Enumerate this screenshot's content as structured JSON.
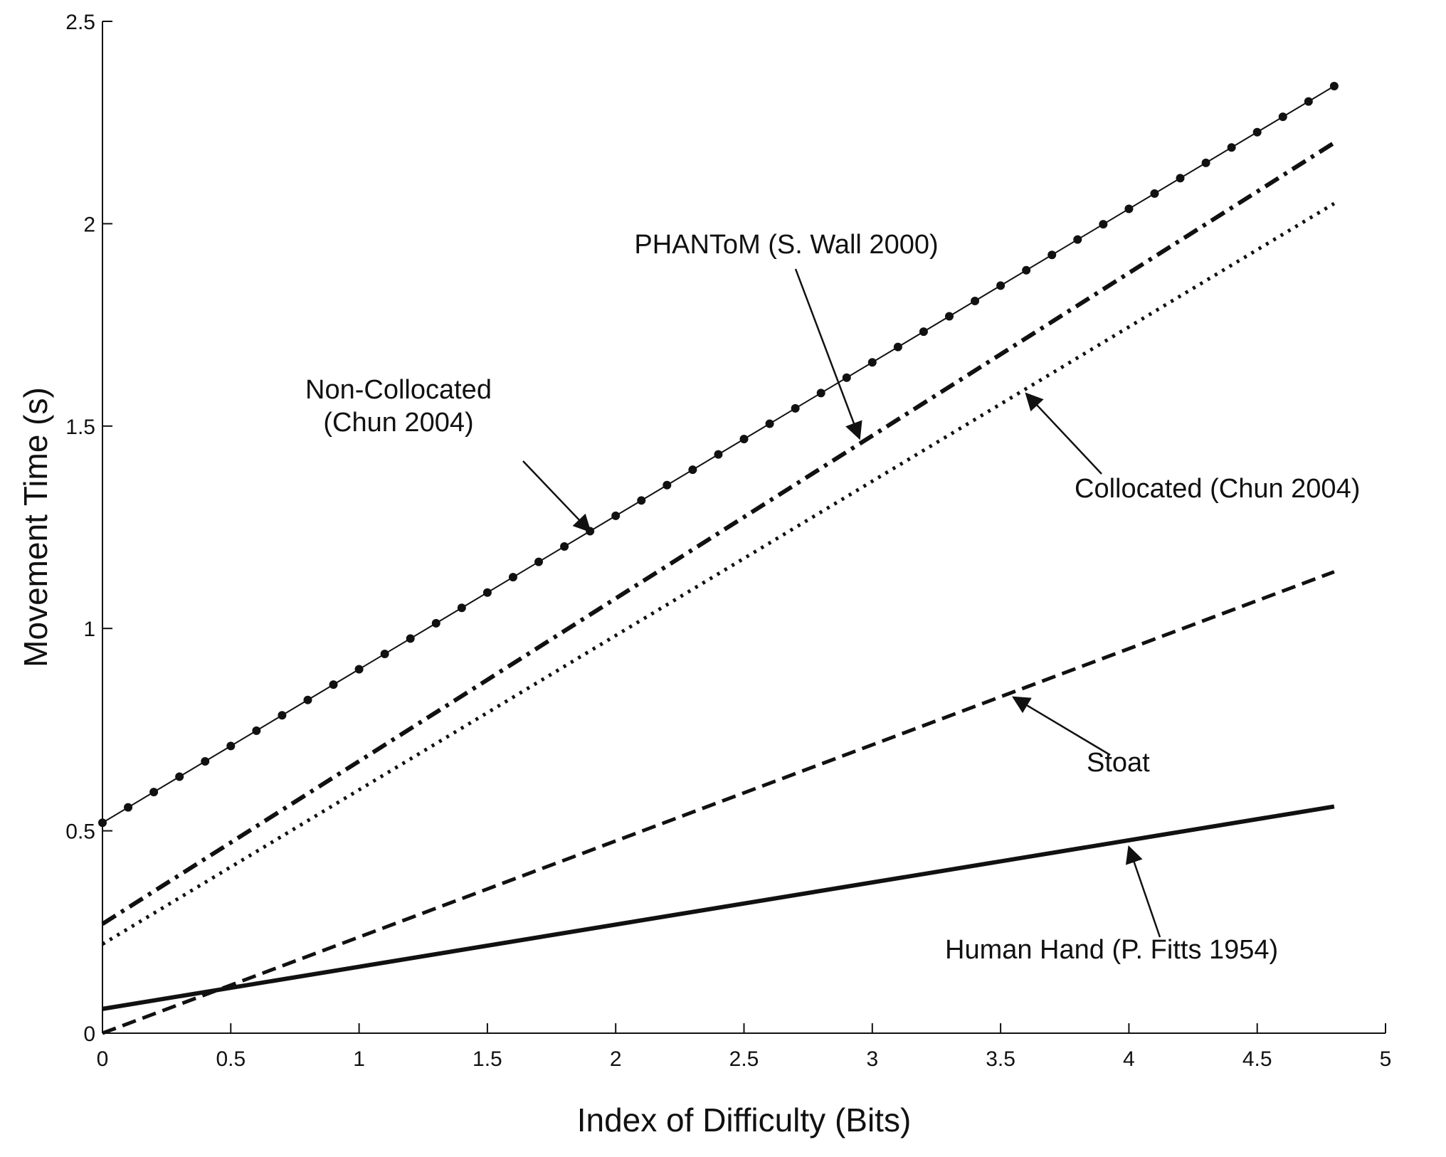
{
  "chart_data": {
    "type": "line",
    "title": "",
    "xlabel": "Index of Difficulty (Bits)",
    "ylabel": "Movement Time (s)",
    "xlim": [
      0,
      5
    ],
    "ylim": [
      0,
      2.5
    ],
    "xticks": [
      0,
      0.5,
      1,
      1.5,
      2,
      2.5,
      3,
      3.5,
      4,
      4.5,
      5
    ],
    "xtick_labels": [
      "0",
      "0.5",
      "1",
      "1.5",
      "2",
      "2.5",
      "3",
      "3.5",
      "4",
      "4.5",
      "5"
    ],
    "yticks": [
      0,
      0.5,
      1,
      1.5,
      2,
      2.5
    ],
    "ytick_labels": [
      "0",
      "0.5",
      "1",
      "1.5",
      "2",
      "2.5"
    ],
    "grid": false,
    "legend": "none (inline annotations with arrows)",
    "series": [
      {
        "name": "Non-Collocated (Chun 2004)",
        "style": "thin-line-with-dots",
        "x": [
          0,
          4.8
        ],
        "y": [
          0.52,
          2.34
        ],
        "marker_step": 0.1
      },
      {
        "name": "PHANToM (S. Wall 2000)",
        "style": "dash-dot",
        "x": [
          0,
          4.8
        ],
        "y": [
          0.27,
          2.2
        ]
      },
      {
        "name": "Collocated (Chun 2004)",
        "style": "dotted",
        "x": [
          0,
          4.8
        ],
        "y": [
          0.22,
          2.05
        ]
      },
      {
        "name": "Stoat",
        "style": "dashed",
        "x": [
          0,
          4.8
        ],
        "y": [
          0.0,
          1.14
        ]
      },
      {
        "name": "Human Hand (P. Fitts 1954)",
        "style": "solid-thick",
        "x": [
          0,
          4.8
        ],
        "y": [
          0.06,
          0.56
        ]
      }
    ],
    "annotations": [
      {
        "lines": [
          "Non-Collocated",
          "(Chun 2004)"
        ],
        "target": [
          1.9,
          1.24
        ]
      },
      {
        "lines": [
          "PHANToM (S. Wall 2000)"
        ],
        "target": [
          2.95,
          1.47
        ]
      },
      {
        "lines": [
          "Collocated (Chun 2004)"
        ],
        "target": [
          3.6,
          1.58
        ]
      },
      {
        "lines": [
          "Stoat"
        ],
        "target": [
          3.55,
          0.83
        ]
      },
      {
        "lines": [
          "Human Hand (P. Fitts 1954)"
        ],
        "target": [
          4.0,
          0.46
        ]
      }
    ]
  }
}
